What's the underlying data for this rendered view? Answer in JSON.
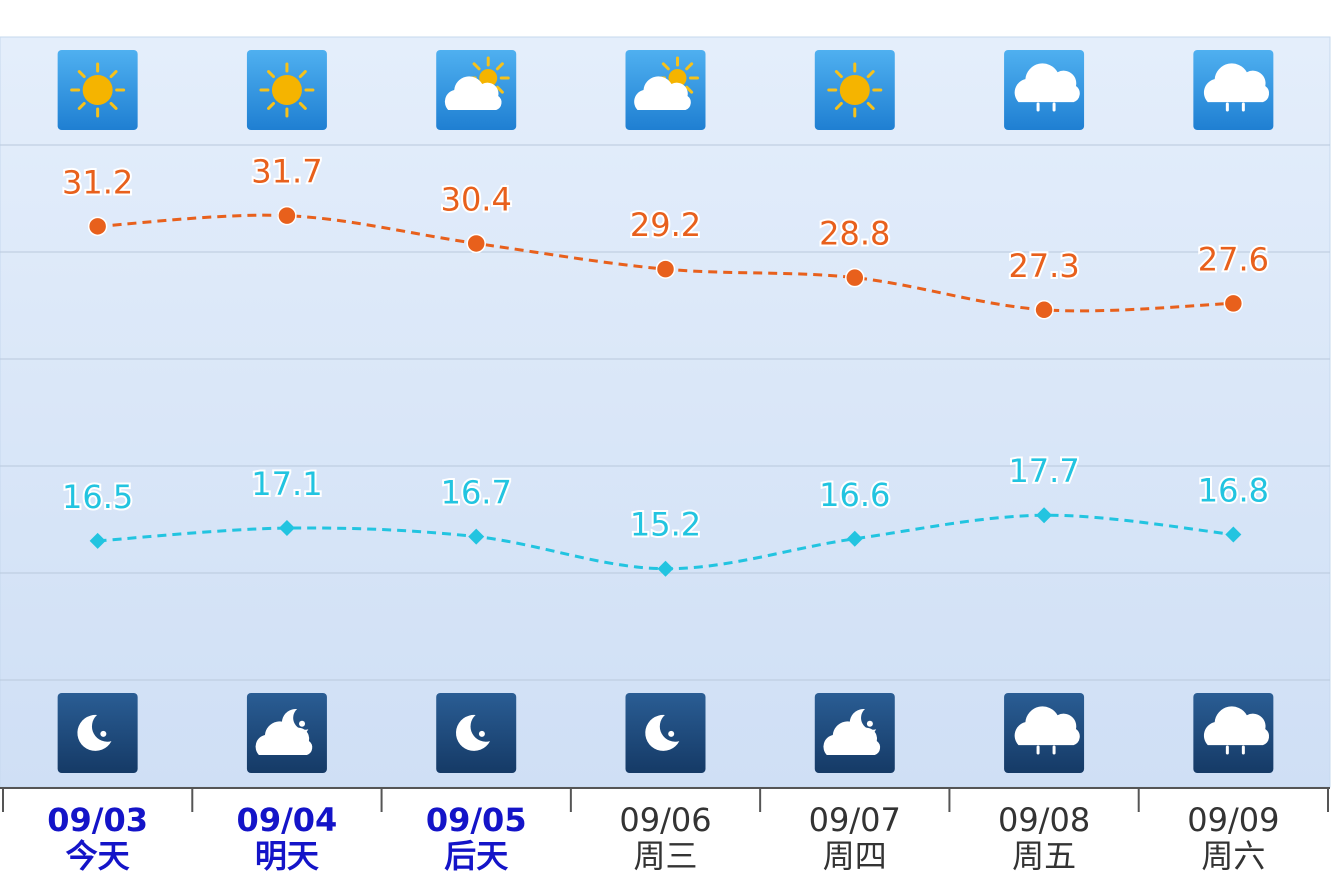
{
  "chart_data": {
    "type": "line",
    "categories": [
      "09/03",
      "09/04",
      "09/05",
      "09/06",
      "09/07",
      "09/08",
      "09/09"
    ],
    "day_labels": [
      "今天",
      "明天",
      "后天",
      "周三",
      "周四",
      "周五",
      "周六"
    ],
    "highlight": [
      true,
      true,
      true,
      false,
      false,
      false,
      false
    ],
    "day_weather": [
      "sunny",
      "sunny",
      "partly-cloudy",
      "partly-cloudy",
      "sunny",
      "rain",
      "rain"
    ],
    "night_weather": [
      "moon",
      "cloud-moon",
      "moon",
      "moon",
      "cloud-moon",
      "rain",
      "rain"
    ],
    "series": [
      {
        "color": "#e8601c",
        "marker": "circle",
        "values": [
          31.2,
          31.7,
          30.4,
          29.2,
          28.8,
          27.3,
          27.6
        ]
      },
      {
        "color": "#22c4e0",
        "marker": "diamond",
        "values": [
          16.5,
          17.1,
          16.7,
          15.2,
          16.6,
          17.7,
          16.8
        ]
      }
    ],
    "ylim": [
      10,
      35
    ],
    "yticks": [
      10,
      15,
      20,
      25,
      30,
      35
    ],
    "grid": true
  }
}
